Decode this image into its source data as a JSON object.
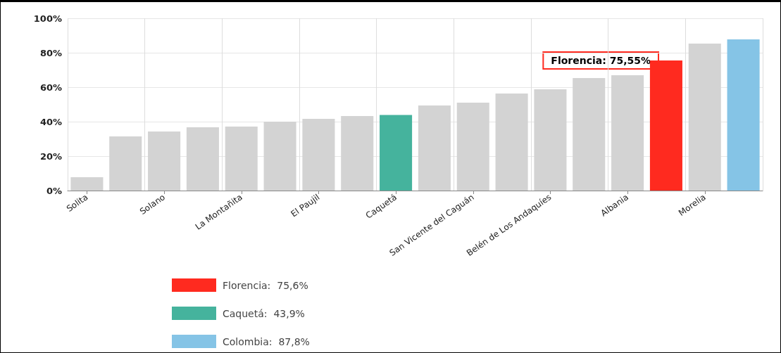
{
  "chart_data": {
    "type": "bar",
    "categories": [
      "Solita",
      null,
      "Solano",
      null,
      "La Montañita",
      null,
      "El Paujil",
      null,
      "Caquetá",
      null,
      "San Vicente del Caguán",
      null,
      "Belén de Los Andaquíes",
      null,
      "Albania",
      null,
      "Morelia",
      null
    ],
    "series": [
      {
        "color": "#d3d3d3",
        "values": [
          7.8,
          31.4,
          34.3,
          36.7,
          37.1,
          40.0,
          41.6,
          43.3,
          null,
          49.4,
          51.0,
          56.3,
          58.8,
          65.3,
          66.9,
          null,
          85.3,
          null
        ]
      },
      {
        "name": "Florencia:  75,6%",
        "color": "#ff2a1f",
        "values": [
          null,
          null,
          null,
          null,
          null,
          null,
          null,
          null,
          null,
          null,
          null,
          null,
          null,
          null,
          null,
          75.55,
          null,
          null
        ]
      },
      {
        "name": "Caquetá:  43,9%",
        "color": "#45b39d",
        "values": [
          null,
          null,
          null,
          null,
          null,
          null,
          null,
          null,
          43.9,
          null,
          null,
          null,
          null,
          null,
          null,
          null,
          null,
          null
        ]
      },
      {
        "name": "Colombia:  87,8%",
        "color": "#85c4e6",
        "values": [
          null,
          null,
          null,
          null,
          null,
          null,
          null,
          null,
          null,
          null,
          null,
          null,
          null,
          null,
          null,
          null,
          null,
          87.8
        ]
      }
    ],
    "ylim": [
      0,
      100
    ],
    "yticks": [
      {
        "value": 0,
        "label": "0%"
      },
      {
        "value": 20,
        "label": "20%"
      },
      {
        "value": 40,
        "label": "40%"
      },
      {
        "value": 60,
        "label": "60%"
      },
      {
        "value": 80,
        "label": "80%"
      },
      {
        "value": 100,
        "label": "100%"
      }
    ],
    "grid": true,
    "legend": "bottom",
    "annotations": [
      "Florencia: 75,55%"
    ]
  }
}
